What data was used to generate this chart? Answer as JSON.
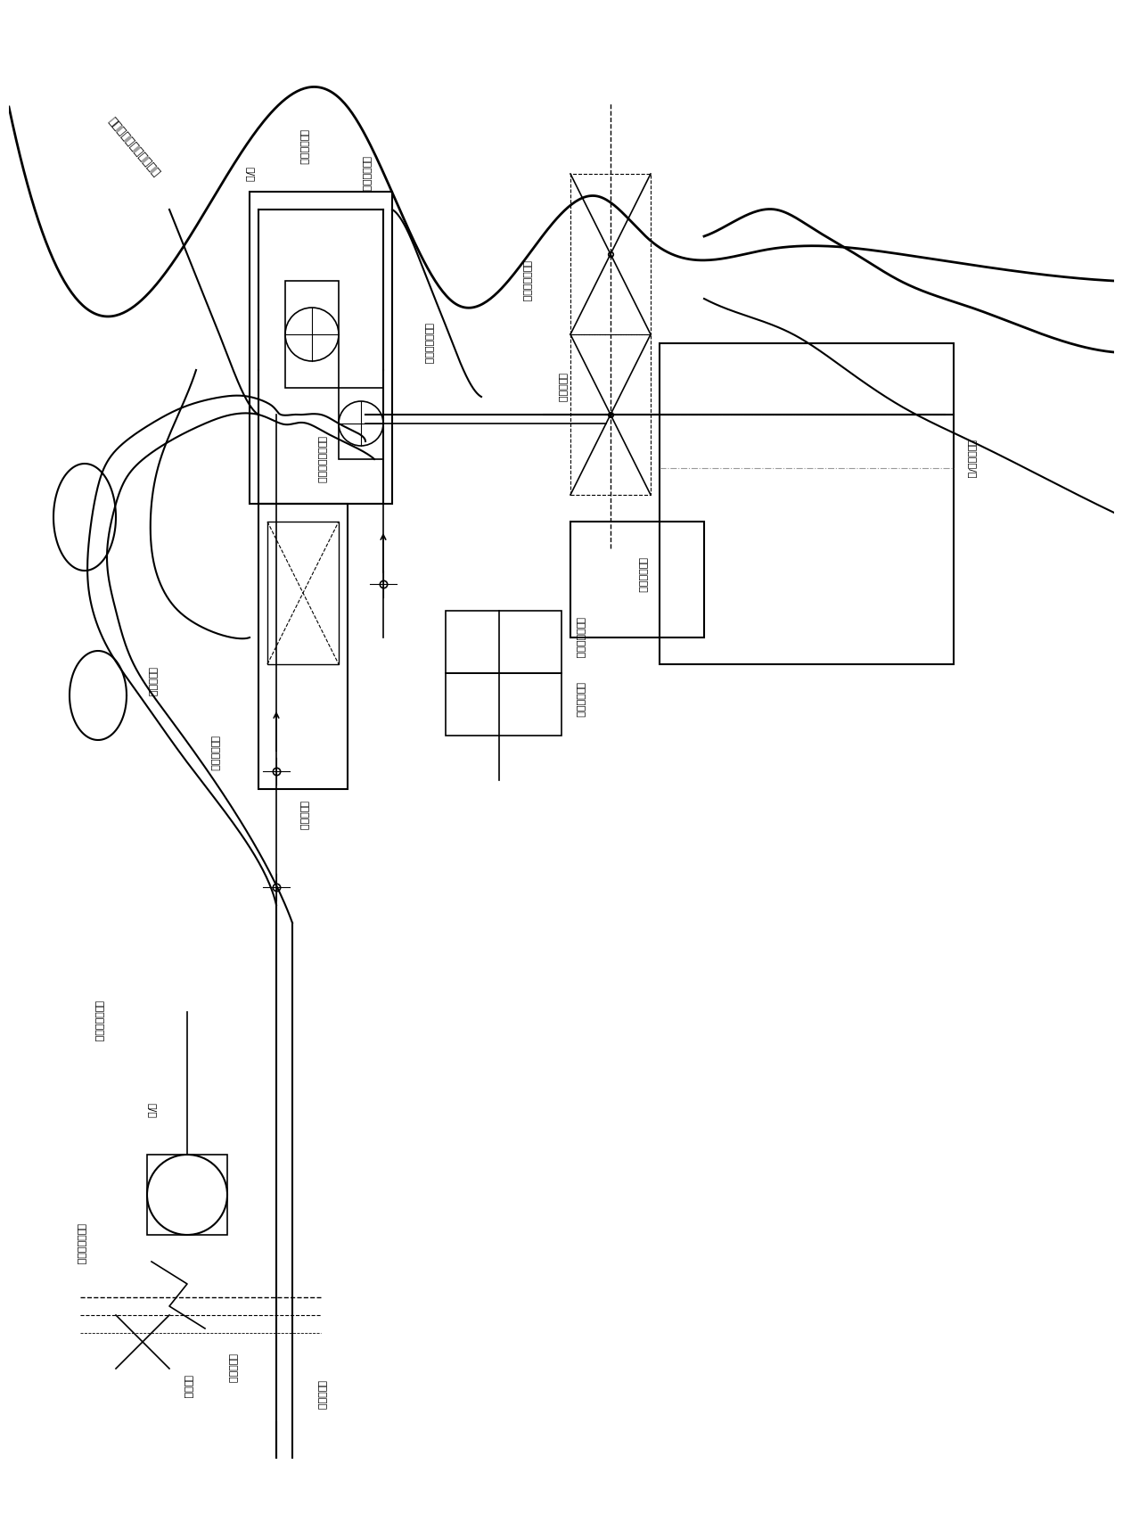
{
  "bg_color": "#ffffff",
  "line_color": "#000000",
  "gray_line_color": "#999999",
  "fig_width": 12.4,
  "fig_height": 17.05,
  "labels": {
    "title_region": "抛沙或抛丸除尘分离机组",
    "label_high_detect_upper": "高度检测装置",
    "label_manual_ctrl": "手动控制箱台",
    "label_manual_upper": "手/自",
    "label_auto_transfer": "自动传输链机组",
    "label_work_return": "工作载车返回线",
    "label_throw_remove": "抛沙或抛丸除锈号",
    "label_ground_drive": "地面拖动机组",
    "label_check": "检查、整直",
    "label_hang_device": "转挂装置手/自",
    "label_throw_power": "抛沙或抛丸电源",
    "label_auto_power": "自动输送电源",
    "label_transfer_chain1": "传输链机组",
    "label_high_detect_mid": "高度检测装置",
    "label_transfer_chain2": "传输链机组",
    "label_reserve_updown": "预留上、下牛区",
    "label_manual_self": "手/自",
    "label_electric_drive": "电动闭锁电制动",
    "label_front_load": "前端上件区",
    "label_slide_power": "滑线供电",
    "label_reserve_load": "预留上件区"
  }
}
